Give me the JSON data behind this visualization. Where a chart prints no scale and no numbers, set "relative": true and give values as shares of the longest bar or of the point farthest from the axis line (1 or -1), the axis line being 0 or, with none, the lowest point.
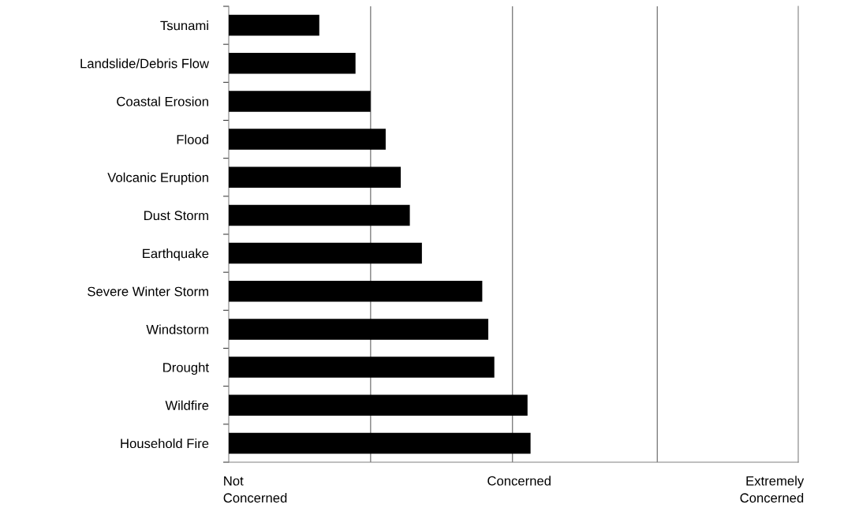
{
  "chart_data": {
    "type": "bar",
    "orientation": "horizontal",
    "relative": true,
    "categories": [
      "Tsunami",
      "Landslide/Debris Flow",
      "Coastal Erosion",
      "Flood",
      "Volcanic Eruption",
      "Dust Storm",
      "Earthquake",
      "Severe Winter Storm",
      "Windstorm",
      "Drought",
      "Wildfire",
      "Household Fire"
    ],
    "values": [
      0.3,
      0.42,
      0.47,
      0.52,
      0.57,
      0.6,
      0.64,
      0.84,
      0.86,
      0.88,
      0.99,
      1
    ],
    "color": "#000000",
    "annotations": [
      "Not\nConcerned",
      "Concerned",
      "Extremely\nConcerned"
    ],
    "ref_lines": [
      {
        "axis": "x",
        "value": 0.47,
        "color": "#808080"
      },
      {
        "axis": "x",
        "value": 0.94,
        "color": "#808080"
      },
      {
        "axis": "x",
        "value": 1.42,
        "color": "#808080"
      }
    ]
  }
}
